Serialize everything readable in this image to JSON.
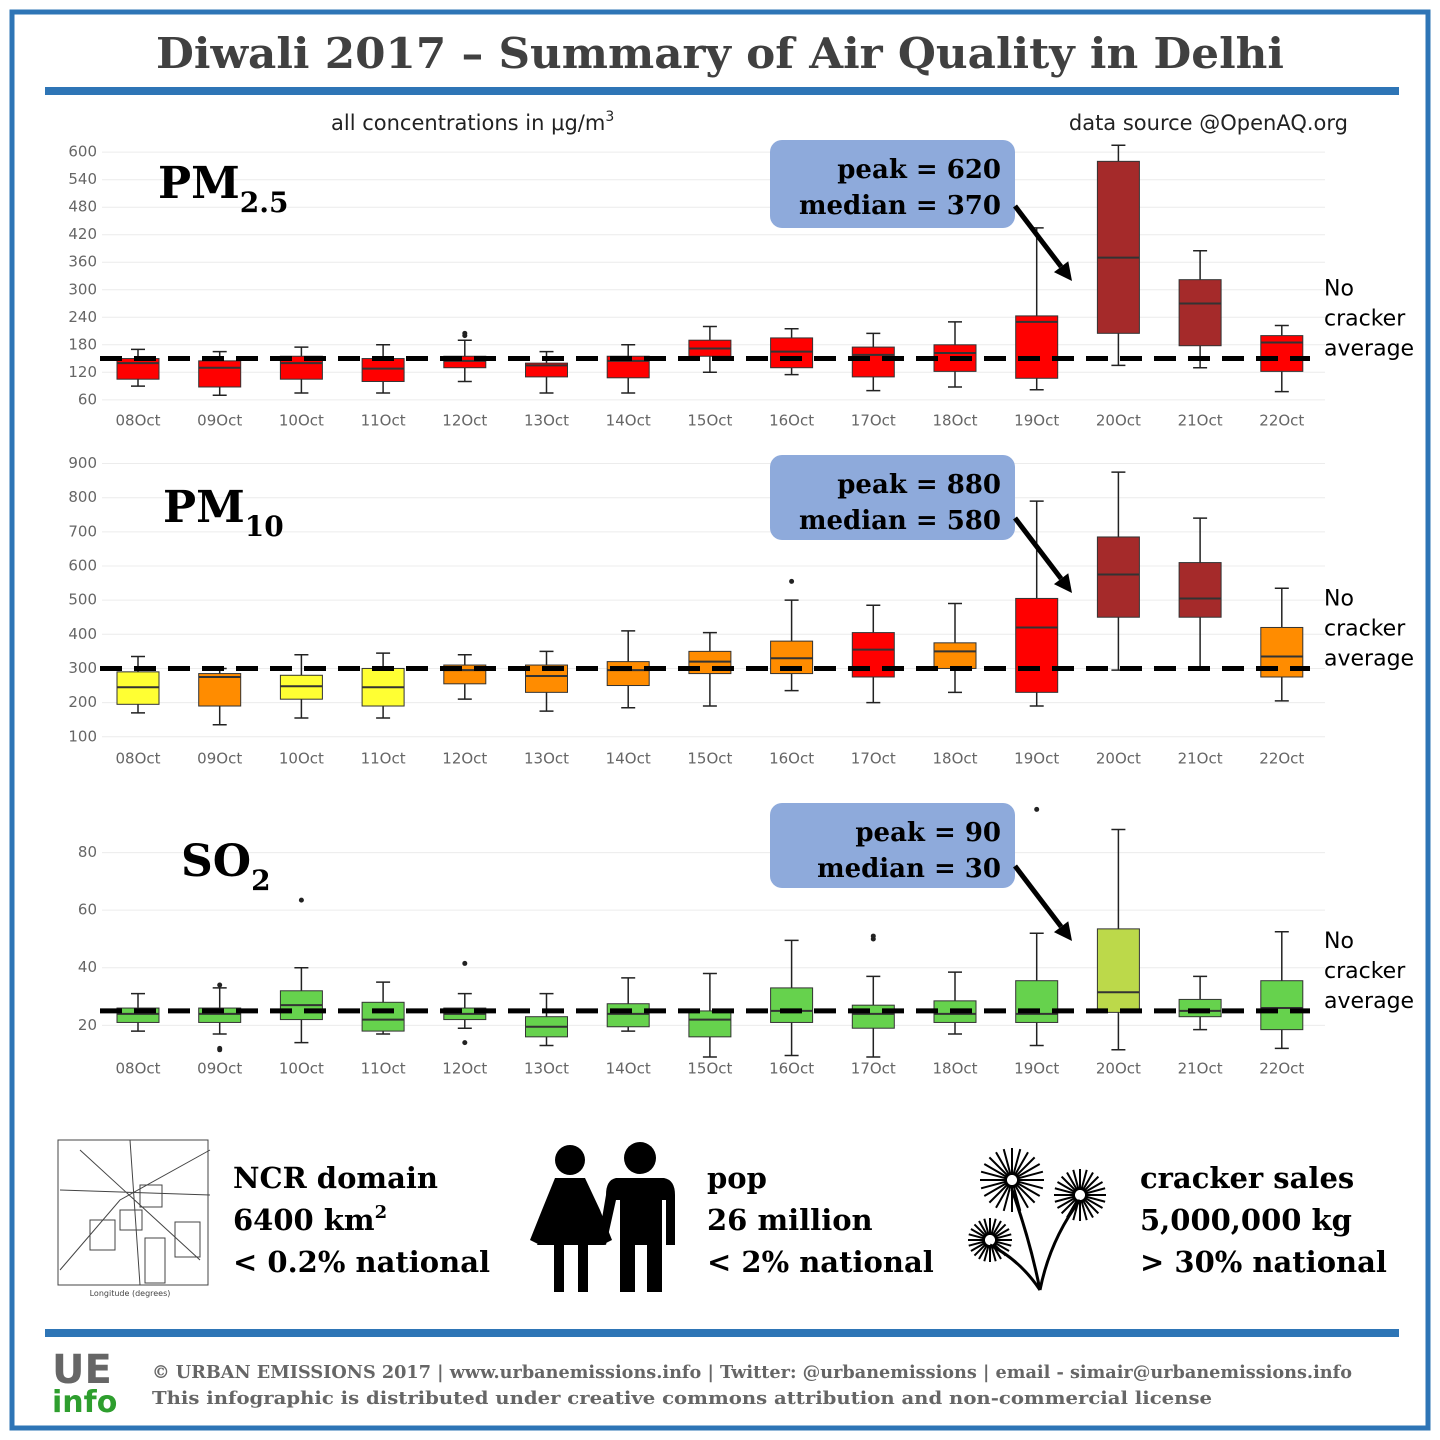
{
  "header": {
    "title": "Diwali 2017 – Summary of Air Quality in Delhi",
    "units": "all concentrations in μg/m",
    "units_sup": "3",
    "source": "data source @OpenAQ.org"
  },
  "chart_data": [
    {
      "type": "box",
      "title": "PM",
      "title_sub": "2.5",
      "categories": [
        "08Oct",
        "09Oct",
        "10Oct",
        "11Oct",
        "12Oct",
        "13Oct",
        "14Oct",
        "15Oct",
        "16Oct",
        "17Oct",
        "18Oct",
        "19Oct",
        "20Oct",
        "21Oct",
        "22Oct"
      ],
      "boxes": [
        {
          "low": 90,
          "q1": 105,
          "median": 140,
          "q3": 150,
          "high": 170,
          "color": "#ff0000"
        },
        {
          "low": 70,
          "q1": 88,
          "median": 130,
          "q3": 145,
          "high": 165,
          "color": "#ff0000"
        },
        {
          "low": 75,
          "q1": 105,
          "median": 140,
          "q3": 155,
          "high": 175,
          "color": "#ff0000"
        },
        {
          "low": 75,
          "q1": 100,
          "median": 128,
          "q3": 150,
          "high": 180,
          "color": "#ff0000"
        },
        {
          "low": 100,
          "q1": 130,
          "median": 145,
          "q3": 155,
          "high": 190,
          "outliers": [
            200,
            205
          ],
          "color": "#ff0000"
        },
        {
          "low": 75,
          "q1": 110,
          "median": 135,
          "q3": 140,
          "high": 165,
          "color": "#ff0000"
        },
        {
          "low": 75,
          "q1": 108,
          "median": 145,
          "q3": 155,
          "high": 180,
          "color": "#ff0000"
        },
        {
          "low": 120,
          "q1": 155,
          "median": 172,
          "q3": 190,
          "high": 220,
          "color": "#ff0000"
        },
        {
          "low": 115,
          "q1": 130,
          "median": 165,
          "q3": 195,
          "high": 215,
          "color": "#ff0000"
        },
        {
          "low": 80,
          "q1": 110,
          "median": 158,
          "q3": 175,
          "high": 205,
          "color": "#ff0000"
        },
        {
          "low": 88,
          "q1": 122,
          "median": 162,
          "q3": 180,
          "high": 230,
          "color": "#ff0000"
        },
        {
          "low": 82,
          "q1": 107,
          "median": 230,
          "q3": 243,
          "high": 435,
          "color": "#ff0000"
        },
        {
          "low": 135,
          "q1": 205,
          "median": 370,
          "q3": 580,
          "high": 615,
          "color": "#a52a2a"
        },
        {
          "low": 130,
          "q1": 178,
          "median": 270,
          "q3": 322,
          "high": 385,
          "color": "#a52a2a"
        },
        {
          "low": 78,
          "q1": 122,
          "median": 185,
          "q3": 200,
          "high": 222,
          "color": "#ff0000"
        }
      ],
      "ylim": [
        40,
        620
      ],
      "yticks": [
        60,
        120,
        180,
        240,
        300,
        360,
        420,
        480,
        540,
        600
      ],
      "grid": true,
      "reference": {
        "value": 150,
        "label": [
          "No",
          "cracker",
          "average"
        ]
      },
      "callout": [
        "peak = 620",
        "median = 370"
      ]
    },
    {
      "type": "box",
      "title": "PM",
      "title_sub": "10",
      "categories": [
        "08Oct",
        "09Oct",
        "10Oct",
        "11Oct",
        "12Oct",
        "13Oct",
        "14Oct",
        "15Oct",
        "16Oct",
        "17Oct",
        "18Oct",
        "19Oct",
        "20Oct",
        "21Oct",
        "22Oct"
      ],
      "boxes": [
        {
          "low": 170,
          "q1": 195,
          "median": 245,
          "q3": 290,
          "high": 335,
          "color": "#ffff33"
        },
        {
          "low": 135,
          "q1": 190,
          "median": 275,
          "q3": 285,
          "high": 300,
          "color": "#ff8c00"
        },
        {
          "low": 155,
          "q1": 210,
          "median": 248,
          "q3": 280,
          "high": 340,
          "color": "#ffff33"
        },
        {
          "low": 155,
          "q1": 190,
          "median": 245,
          "q3": 300,
          "high": 345,
          "color": "#ffff33"
        },
        {
          "low": 210,
          "q1": 255,
          "median": 295,
          "q3": 310,
          "high": 340,
          "color": "#ff8c00"
        },
        {
          "low": 175,
          "q1": 230,
          "median": 278,
          "q3": 310,
          "high": 350,
          "color": "#ff8c00"
        },
        {
          "low": 185,
          "q1": 250,
          "median": 295,
          "q3": 320,
          "high": 410,
          "color": "#ff8c00"
        },
        {
          "low": 190,
          "q1": 285,
          "median": 320,
          "q3": 350,
          "high": 405,
          "color": "#ff8c00"
        },
        {
          "low": 235,
          "q1": 285,
          "median": 330,
          "q3": 380,
          "high": 500,
          "outliers": [
            555
          ],
          "color": "#ff8c00"
        },
        {
          "low": 200,
          "q1": 275,
          "median": 355,
          "q3": 405,
          "high": 485,
          "color": "#ff0000"
        },
        {
          "low": 230,
          "q1": 300,
          "median": 350,
          "q3": 375,
          "high": 490,
          "color": "#ff8c00"
        },
        {
          "low": 190,
          "q1": 230,
          "median": 420,
          "q3": 505,
          "high": 790,
          "color": "#ff0000"
        },
        {
          "low": 295,
          "q1": 450,
          "median": 575,
          "q3": 685,
          "high": 875,
          "color": "#a52a2a"
        },
        {
          "low": 305,
          "q1": 450,
          "median": 505,
          "q3": 610,
          "high": 740,
          "color": "#a52a2a"
        },
        {
          "low": 205,
          "q1": 275,
          "median": 335,
          "q3": 420,
          "high": 535,
          "color": "#ff8c00"
        }
      ],
      "ylim": [
        70,
        925
      ],
      "yticks": [
        100,
        200,
        300,
        400,
        500,
        600,
        700,
        800,
        900
      ],
      "grid": true,
      "reference": {
        "value": 300,
        "label": [
          "No",
          "cracker",
          "average"
        ]
      },
      "callout": [
        "peak = 880",
        "median = 580"
      ]
    },
    {
      "type": "box",
      "title": "SO",
      "title_sub": "2",
      "categories": [
        "08Oct",
        "09Oct",
        "10Oct",
        "11Oct",
        "12Oct",
        "13Oct",
        "14Oct",
        "15Oct",
        "16Oct",
        "17Oct",
        "18Oct",
        "19Oct",
        "20Oct",
        "21Oct",
        "22Oct"
      ],
      "boxes": [
        {
          "low": 18,
          "q1": 21,
          "median": 24,
          "q3": 26,
          "high": 31,
          "color": "#66d24d"
        },
        {
          "low": 17,
          "q1": 21,
          "median": 24,
          "q3": 26,
          "high": 33,
          "outliers": [
            12,
            11.5,
            34
          ],
          "color": "#66d24d"
        },
        {
          "low": 14,
          "q1": 22,
          "median": 27,
          "q3": 32,
          "high": 40,
          "outliers": [
            63.5
          ],
          "color": "#66d24d"
        },
        {
          "low": 17,
          "q1": 18,
          "median": 22,
          "q3": 28,
          "high": 35,
          "color": "#66d24d"
        },
        {
          "low": 19,
          "q1": 22,
          "median": 24,
          "q3": 26,
          "high": 31,
          "outliers": [
            41.5,
            14
          ],
          "color": "#66d24d"
        },
        {
          "low": 13,
          "q1": 16,
          "median": 19.5,
          "q3": 23,
          "high": 31,
          "color": "#66d24d"
        },
        {
          "low": 18,
          "q1": 19.5,
          "median": 24,
          "q3": 27.5,
          "high": 36.5,
          "color": "#66d24d"
        },
        {
          "low": 9,
          "q1": 16,
          "median": 22,
          "q3": 25,
          "high": 38,
          "color": "#66d24d"
        },
        {
          "low": 9.5,
          "q1": 21,
          "median": 25,
          "q3": 33,
          "high": 49.5,
          "color": "#66d24d"
        },
        {
          "low": 9,
          "q1": 19,
          "median": 24,
          "q3": 27,
          "high": 37,
          "outliers": [
            50,
            51
          ],
          "color": "#66d24d"
        },
        {
          "low": 17,
          "q1": 21,
          "median": 24,
          "q3": 28.5,
          "high": 38.5,
          "color": "#66d24d"
        },
        {
          "low": 13,
          "q1": 21,
          "median": 24,
          "q3": 35.5,
          "high": 52,
          "outliers": [
            95
          ],
          "color": "#66d24d"
        },
        {
          "low": 11.5,
          "q1": 24.5,
          "median": 31.5,
          "q3": 53.5,
          "high": 88,
          "color": "#bcd94a"
        },
        {
          "low": 18.5,
          "q1": 23,
          "median": 25,
          "q3": 29,
          "high": 37,
          "color": "#66d24d"
        },
        {
          "low": 12,
          "q1": 18.5,
          "median": 26,
          "q3": 35.5,
          "high": 52.5,
          "color": "#66d24d"
        }
      ],
      "ylim": [
        9,
        100
      ],
      "yticks": [
        20,
        40,
        60,
        80
      ],
      "grid": true,
      "reference": {
        "value": 25,
        "label": [
          "No",
          "cracker",
          "average"
        ]
      },
      "callout": [
        "peak = 90",
        "median = 30"
      ]
    }
  ],
  "facts": [
    {
      "title": "NCR domain",
      "value": "6400 km",
      "value_sup": "2",
      "share": "< 0.2% national"
    },
    {
      "title": "pop",
      "value": "26 million",
      "share": "< 2% national"
    },
    {
      "title": "cracker sales",
      "value": "5,000,000 kg",
      "share": "> 30% national"
    }
  ],
  "footer": {
    "logo_top": "UE",
    "logo_bottom": "info",
    "line1": "© URBAN EMISSIONS 2017 | www.urbanemissions.info | Twitter: @urbanemissions | email - simair@urbanemissions.info",
    "line2": "This infographic is distributed under creative commons attribution and non-commercial license"
  }
}
